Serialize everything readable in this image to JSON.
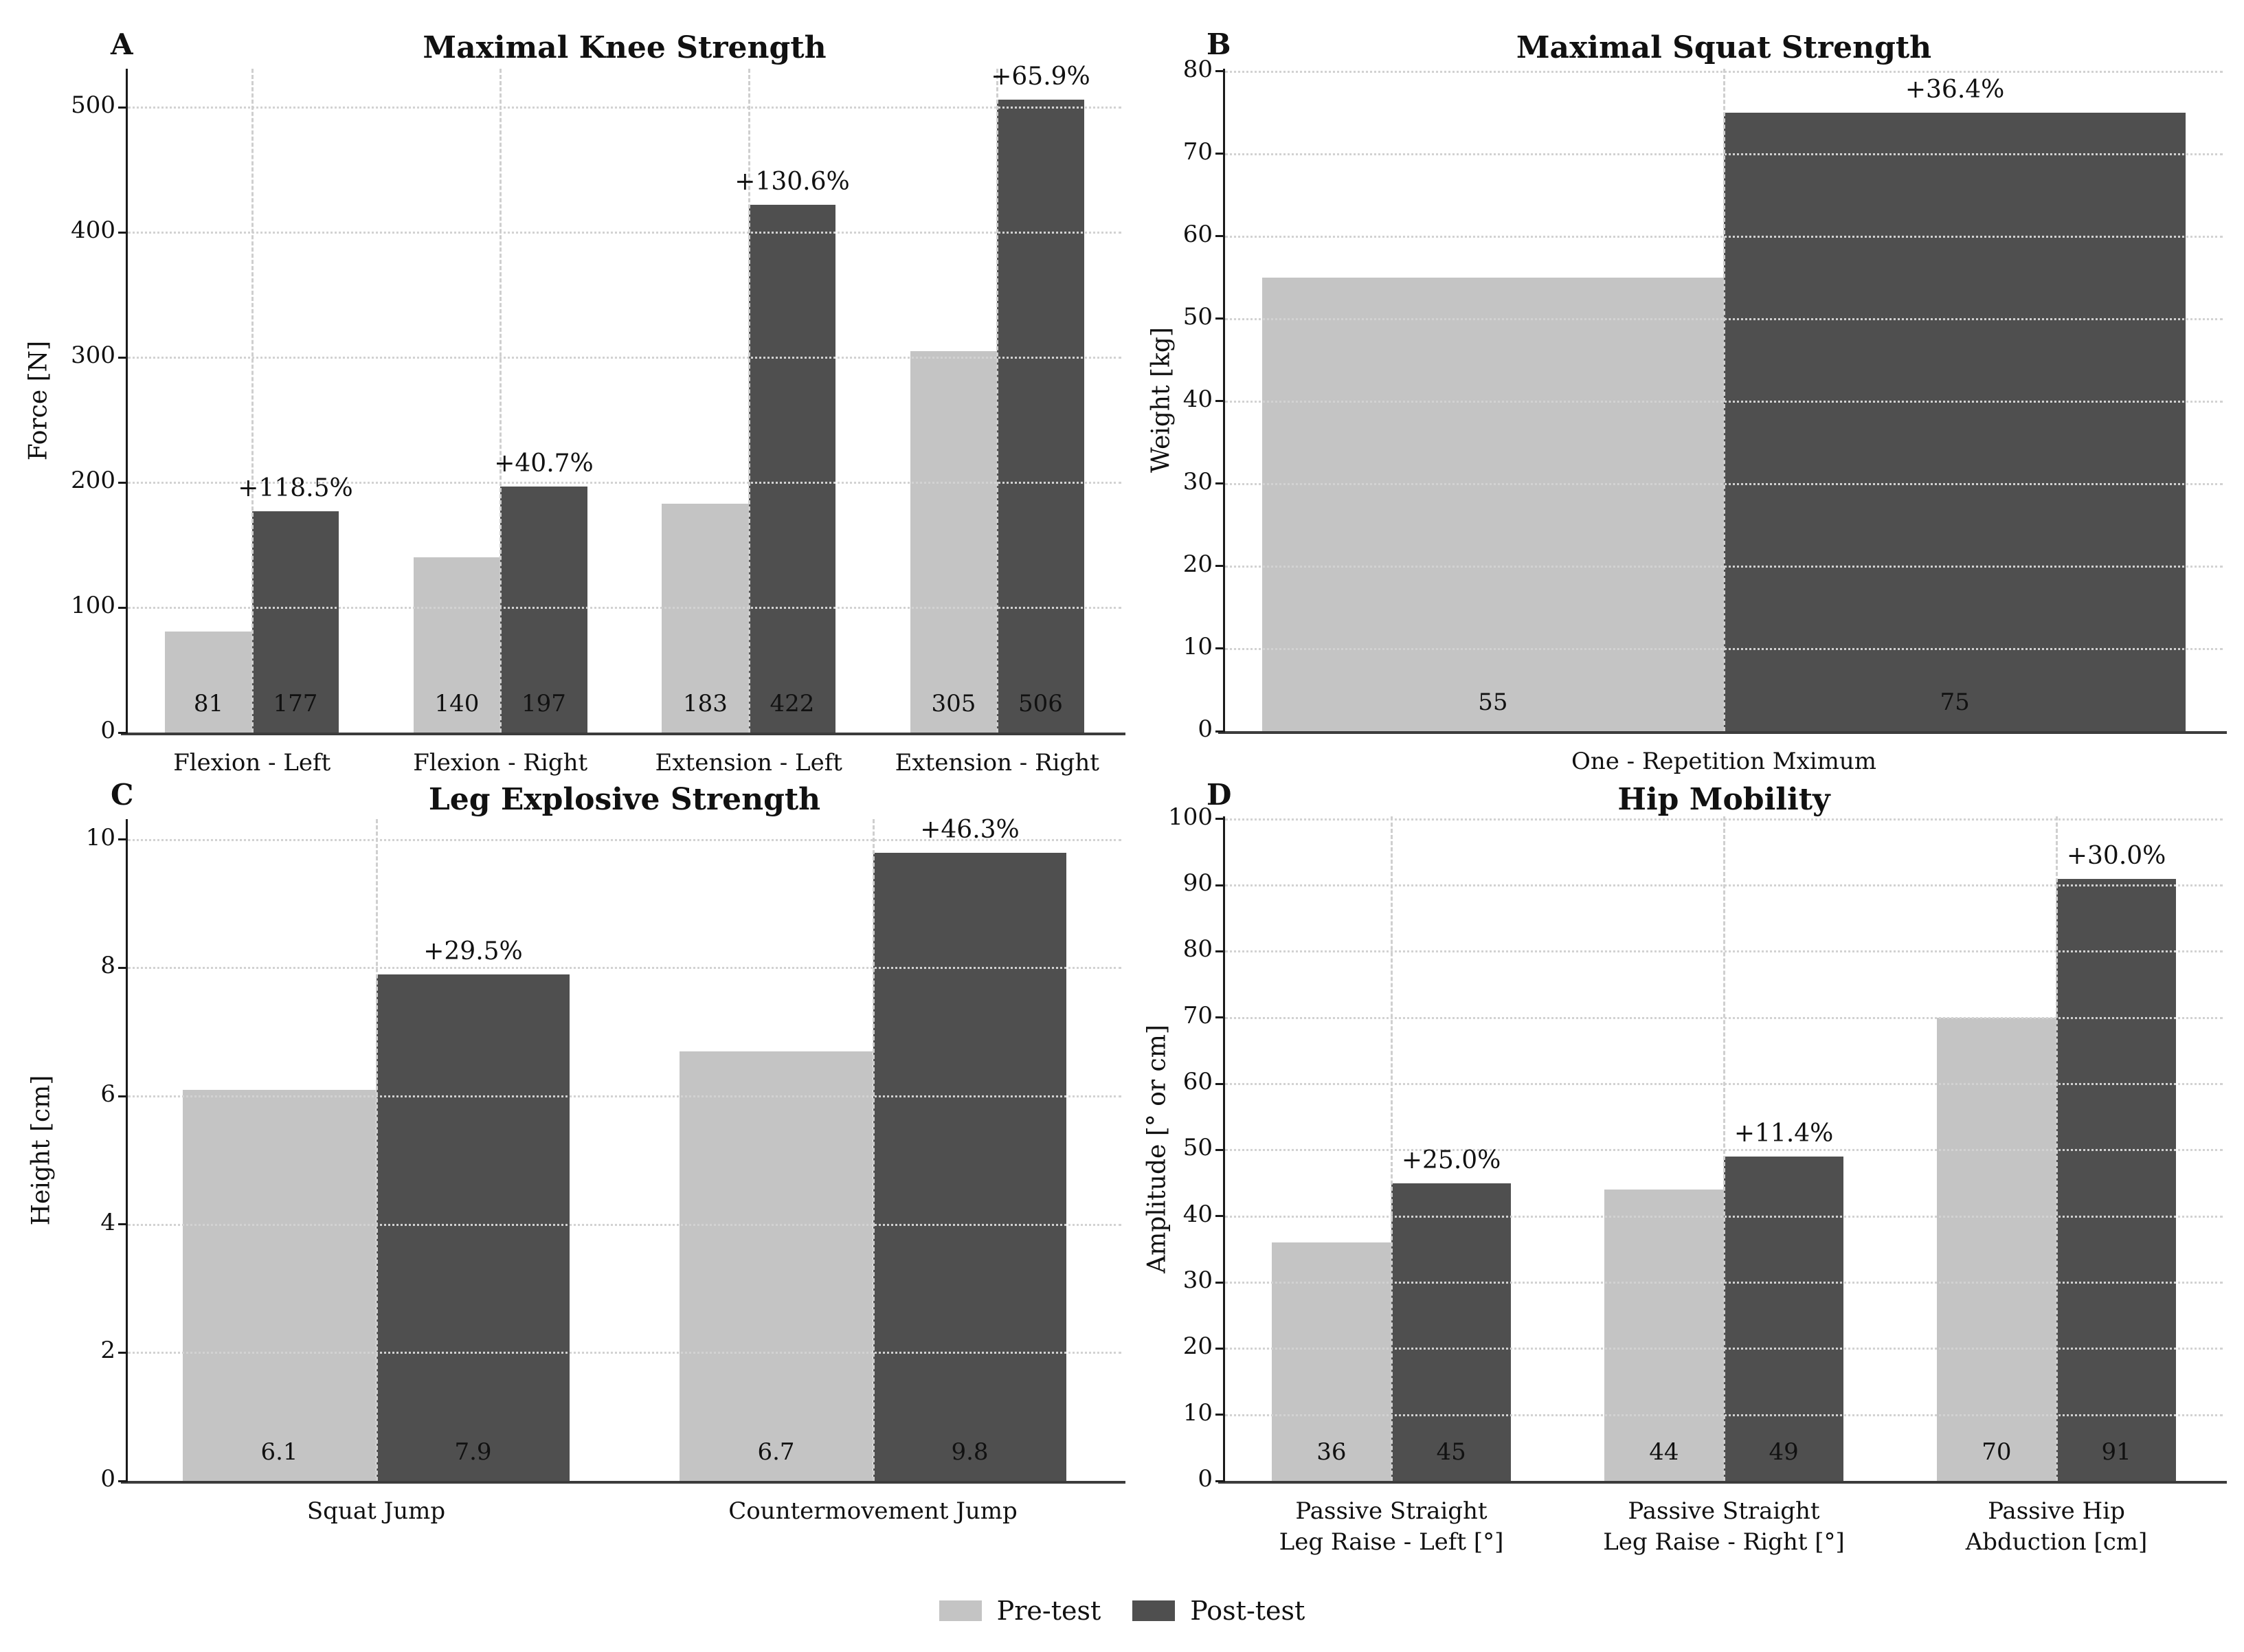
{
  "legend": {
    "items": [
      {
        "label": "Pre-test",
        "color": "#c4c4c4"
      },
      {
        "label": "Post-test",
        "color": "#4f4f4f"
      }
    ],
    "position": "figure-bottom-center"
  },
  "chart_data": [
    {
      "panel": "A",
      "type": "bar",
      "title": "Maximal Knee Strength",
      "ylabel": "Force [N]",
      "xlabel": "",
      "categories": [
        "Flexion - Left",
        "Flexion - Right",
        "Extension - Left",
        "Extension - Right"
      ],
      "series": [
        {
          "name": "Pre-test",
          "color": "#c4c4c4",
          "values": [
            81,
            140,
            183,
            305
          ],
          "bar_labels": [
            "81",
            "140",
            "183",
            "305"
          ]
        },
        {
          "name": "Post-test",
          "color": "#4f4f4f",
          "values": [
            177,
            197,
            422,
            506
          ],
          "bar_labels": [
            "177",
            "197",
            "422",
            "506"
          ]
        }
      ],
      "pct_change_labels": [
        "+118.5%",
        "+40.7%",
        "+130.6%",
        "+65.9%"
      ],
      "yticks": [
        0,
        100,
        200,
        300,
        400,
        500
      ],
      "ylim": [
        0,
        531
      ],
      "grid": true
    },
    {
      "panel": "B",
      "type": "bar",
      "title": "Maximal Squat Strength",
      "ylabel": "Weight [kg]",
      "xlabel": "",
      "categories": [
        "One - Repetition Mximum"
      ],
      "series": [
        {
          "name": "Pre-test",
          "color": "#c4c4c4",
          "values": [
            55
          ],
          "bar_labels": [
            "55"
          ]
        },
        {
          "name": "Post-test",
          "color": "#4f4f4f",
          "values": [
            75
          ],
          "bar_labels": [
            "75"
          ]
        }
      ],
      "pct_change_labels": [
        "+36.4%"
      ],
      "yticks": [
        0,
        10,
        20,
        30,
        40,
        50,
        60,
        70,
        80
      ],
      "ylim": [
        0,
        80
      ],
      "grid": true
    },
    {
      "panel": "C",
      "type": "bar",
      "title": "Leg Explosive Strength",
      "ylabel": "Height [cm]",
      "xlabel": "",
      "categories": [
        "Squat Jump",
        "Countermovement Jump"
      ],
      "series": [
        {
          "name": "Pre-test",
          "color": "#c4c4c4",
          "values": [
            6.1,
            6.7
          ],
          "bar_labels": [
            "6.1",
            "6.7"
          ]
        },
        {
          "name": "Post-test",
          "color": "#4f4f4f",
          "values": [
            7.9,
            9.8
          ],
          "bar_labels": [
            "7.9",
            "9.8"
          ]
        }
      ],
      "pct_change_labels": [
        "+29.5%",
        "+46.3%"
      ],
      "yticks": [
        0,
        2,
        4,
        6,
        8,
        10
      ],
      "ylim": [
        0,
        10.3
      ],
      "grid": true
    },
    {
      "panel": "D",
      "type": "bar",
      "title": "Hip Mobility",
      "ylabel": "Amplitude [° or cm]",
      "xlabel": "",
      "categories": [
        "Passive Straight\nLeg Raise - Left [°]",
        "Passive Straight\nLeg Raise - Right [°]",
        "Passive Hip\nAbduction [cm]"
      ],
      "series": [
        {
          "name": "Pre-test",
          "color": "#c4c4c4",
          "values": [
            36,
            44,
            70
          ],
          "bar_labels": [
            "36",
            "44",
            "70"
          ]
        },
        {
          "name": "Post-test",
          "color": "#4f4f4f",
          "values": [
            45,
            49,
            91
          ],
          "bar_labels": [
            "45",
            "49",
            "91"
          ]
        }
      ],
      "pct_change_labels": [
        "+25.0%",
        "+11.4%",
        "+30.0%"
      ],
      "yticks": [
        0,
        10,
        20,
        30,
        40,
        50,
        60,
        70,
        80,
        90,
        100
      ],
      "ylim": [
        0,
        100
      ],
      "grid": true
    }
  ]
}
